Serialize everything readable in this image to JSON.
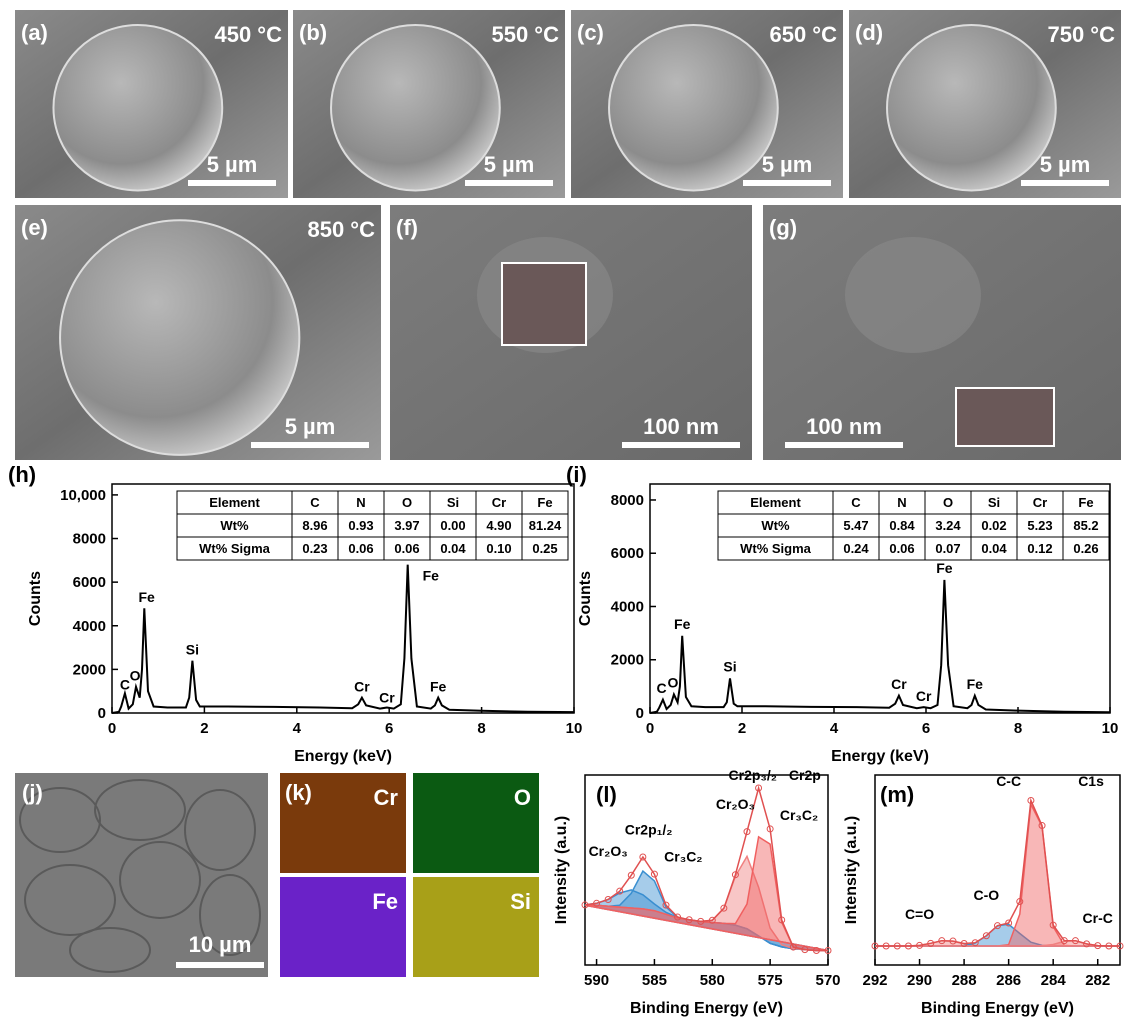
{
  "panels": [
    {
      "label": "(a)",
      "temperature": "450 °C",
      "scale": "5 µm"
    },
    {
      "label": "(b)",
      "temperature": "550 °C",
      "scale": "5 µm"
    },
    {
      "label": "(c)",
      "temperature": "650 °C",
      "scale": "5 µm"
    },
    {
      "label": "(d)",
      "temperature": "750 °C",
      "scale": "5 µm"
    },
    {
      "label": "(e)",
      "temperature": "850 °C",
      "scale": "5 µm"
    },
    {
      "label": "(f)",
      "scale": "100 nm"
    },
    {
      "label": "(g)",
      "scale": "100 nm"
    }
  ],
  "panel_j": {
    "label": "(j)",
    "scale": "10 µm"
  },
  "panel_k": {
    "label": "(k)",
    "maps": [
      "Cr",
      "O",
      "Fe",
      "Si"
    ]
  },
  "chart_data": [
    {
      "type": "line",
      "panel": "(h)",
      "xlabel": "Energy (keV)",
      "ylabel": "Counts",
      "xlim": [
        0,
        10
      ],
      "ylim": [
        0,
        10500
      ],
      "xticks": [
        0,
        2,
        4,
        6,
        8,
        10
      ],
      "yticks": [
        0,
        2000,
        4000,
        6000,
        8000,
        {
          "value": 10000,
          "label": "10,000"
        }
      ],
      "x": [
        0,
        0.15,
        0.2,
        0.28,
        0.36,
        0.45,
        0.52,
        0.6,
        0.65,
        0.7,
        0.78,
        0.9,
        1.2,
        1.6,
        1.67,
        1.74,
        1.82,
        1.9,
        2.5,
        3.5,
        4.5,
        5.2,
        5.33,
        5.41,
        5.5,
        5.8,
        5.95,
        6.1,
        6.25,
        6.33,
        6.4,
        6.48,
        6.6,
        6.9,
        6.99,
        7.06,
        7.14,
        7.3,
        8,
        9,
        10
      ],
      "series": [
        {
          "color": "#000000",
          "values": [
            0,
            50,
            300,
            900,
            200,
            400,
            1200,
            700,
            2000,
            4800,
            1000,
            300,
            250,
            250,
            700,
            2400,
            600,
            300,
            300,
            280,
            250,
            220,
            400,
            700,
            350,
            200,
            250,
            200,
            400,
            2500,
            6800,
            2500,
            300,
            200,
            350,
            700,
            350,
            150,
            100,
            60,
            40
          ]
        }
      ],
      "annotations": [
        {
          "text": "C",
          "x": 0.28,
          "y": 900,
          "color": "#000000"
        },
        {
          "text": "O",
          "x": 0.5,
          "y": 1300,
          "color": "#000000"
        },
        {
          "text": "Fe",
          "x": 0.75,
          "y": 4900,
          "color": "#000000"
        },
        {
          "text": "Si",
          "x": 1.74,
          "y": 2500,
          "color": "#000000"
        },
        {
          "text": "Cr",
          "x": 5.41,
          "y": 800,
          "color": "#000000"
        },
        {
          "text": "Cr",
          "x": 5.95,
          "y": 300,
          "color": "#000000"
        },
        {
          "text": "Fe",
          "x": 6.9,
          "y": 5900,
          "color": "#000000"
        },
        {
          "text": "Fe",
          "x": 7.06,
          "y": 800,
          "color": "#000000"
        }
      ],
      "table": {
        "header": [
          "Element",
          "C",
          "N",
          "O",
          "Si",
          "Cr",
          "Fe"
        ],
        "rows": [
          [
            "Wt%",
            "8.96",
            "0.93",
            "3.97",
            "0.00",
            "4.90",
            "81.24"
          ],
          [
            "Wt% Sigma",
            "0.23",
            "0.06",
            "0.06",
            "0.04",
            "0.10",
            "0.25"
          ]
        ]
      }
    },
    {
      "type": "line",
      "panel": "(i)",
      "xlabel": "Energy (keV)",
      "ylabel": "Counts",
      "xlim": [
        0,
        10
      ],
      "ylim": [
        0,
        8600
      ],
      "xticks": [
        0,
        2,
        4,
        6,
        8,
        10
      ],
      "yticks": [
        0,
        2000,
        4000,
        6000,
        8000
      ],
      "x": [
        0,
        0.15,
        0.2,
        0.28,
        0.36,
        0.45,
        0.52,
        0.6,
        0.65,
        0.7,
        0.78,
        0.9,
        1.2,
        1.6,
        1.67,
        1.74,
        1.82,
        1.9,
        2.5,
        3.5,
        4.5,
        5.2,
        5.33,
        5.41,
        5.5,
        5.8,
        5.95,
        6.1,
        6.25,
        6.33,
        6.4,
        6.48,
        6.6,
        6.9,
        6.99,
        7.06,
        7.14,
        7.3,
        8,
        9,
        10
      ],
      "series": [
        {
          "color": "#000000",
          "values": [
            0,
            50,
            200,
            500,
            150,
            300,
            700,
            400,
            1000,
            2900,
            600,
            250,
            220,
            220,
            400,
            1300,
            350,
            250,
            250,
            230,
            220,
            200,
            350,
            650,
            300,
            180,
            220,
            180,
            300,
            1800,
            5000,
            1800,
            250,
            180,
            300,
            650,
            300,
            130,
            90,
            50,
            30
          ]
        }
      ],
      "annotations": [
        {
          "text": "C",
          "x": 0.25,
          "y": 600,
          "color": "#000000"
        },
        {
          "text": "O",
          "x": 0.5,
          "y": 800,
          "color": "#000000"
        },
        {
          "text": "Fe",
          "x": 0.7,
          "y": 3000,
          "color": "#000000"
        },
        {
          "text": "Si",
          "x": 1.74,
          "y": 1400,
          "color": "#000000"
        },
        {
          "text": "Cr",
          "x": 5.41,
          "y": 750,
          "color": "#000000"
        },
        {
          "text": "Cr",
          "x": 5.95,
          "y": 300,
          "color": "#000000"
        },
        {
          "text": "Fe",
          "x": 6.4,
          "y": 5100,
          "color": "#000000"
        },
        {
          "text": "Fe",
          "x": 7.06,
          "y": 750,
          "color": "#000000"
        }
      ],
      "table": {
        "header": [
          "Element",
          "C",
          "N",
          "O",
          "Si",
          "Cr",
          "Fe"
        ],
        "rows": [
          [
            "Wt%",
            "5.47",
            "0.84",
            "3.24",
            "0.02",
            "5.23",
            "85.2"
          ],
          [
            "Wt% Sigma",
            "0.24",
            "0.06",
            "0.07",
            "0.04",
            "0.12",
            "0.26"
          ]
        ]
      }
    },
    {
      "type": "area",
      "panel": "(l)",
      "xlabel": "Binding Energy (eV)",
      "ylabel": "Intensity (a.u.)",
      "xlim": [
        591,
        570
      ],
      "ylim": [
        0,
        105
      ],
      "xticks": [
        590,
        585,
        580,
        575,
        570
      ],
      "x": [
        591,
        590,
        589,
        588,
        587,
        586,
        585,
        584,
        583,
        582,
        581,
        580,
        579,
        578,
        577,
        576,
        575,
        574,
        573,
        572,
        571,
        570
      ],
      "series": [
        {
          "color": "#8070c0",
          "fill": false,
          "marker": false,
          "values": [
            33,
            33,
            32.5,
            32,
            31.5,
            31,
            30,
            28,
            26,
            25,
            24,
            23.5,
            23,
            22,
            20,
            16,
            12,
            10,
            9,
            8.5,
            8,
            8
          ]
        },
        {
          "color": "#3a8fd0",
          "fill": true,
          "marker": false,
          "values": [
            33.2,
            34.1,
            36.2,
            39.8,
            41.5,
            38.8,
            33.7,
            29.1,
            26.2,
            25,
            24,
            23.5,
            23,
            22,
            20,
            16,
            12,
            10,
            9,
            8.5,
            8,
            8
          ]
        },
        {
          "color": "#3a8fd0",
          "fill": true,
          "marker": false,
          "values": [
            33,
            33,
            32.5,
            33,
            39.6,
            51.9,
            46.5,
            32,
            26.3,
            25,
            24,
            23.5,
            23,
            22,
            20,
            16,
            12,
            10,
            9,
            8.5,
            8,
            8
          ]
        },
        {
          "color": "#f08080",
          "fill": true,
          "marker": false,
          "values": [
            33,
            33,
            32.5,
            32,
            31.5,
            31,
            30,
            28,
            26,
            25,
            24.1,
            24.7,
            31.4,
            49,
            60,
            43,
            20.4,
            11.2,
            9.1,
            8.5,
            8,
            8
          ]
        },
        {
          "color": "#f06060",
          "fill": true,
          "marker": false,
          "values": [
            33,
            33,
            32.5,
            32,
            31.5,
            31,
            30,
            28,
            26,
            25,
            24,
            23.5,
            23,
            22.9,
            33.7,
            70.8,
            66.8,
            23.7,
            9.9,
            8.5,
            8,
            8
          ]
        },
        {
          "color": "#e05050",
          "fill": false,
          "marker": true,
          "values": [
            33.2,
            34.1,
            36.2,
            40.8,
            49.6,
            59.7,
            50.2,
            33.1,
            26.5,
            25,
            24.1,
            24.7,
            31.4,
            49.9,
            73.7,
            97.8,
            75.2,
            24.9,
            9.9,
            8.5,
            8,
            8
          ]
        }
      ],
      "annotations": [
        {
          "text": "Cr2p₁/₂",
          "x": 585.5,
          "y": 70,
          "color": "#000000"
        },
        {
          "text": "Cr₂O₃",
          "x": 589,
          "y": 58,
          "color": "#000000"
        },
        {
          "text": "Cr₃C₂",
          "x": 582.5,
          "y": 55,
          "color": "#000000"
        },
        {
          "text": "Cr₂O₃",
          "x": 578,
          "y": 84,
          "color": "#000000"
        },
        {
          "text": "Cr2p₃/₂",
          "x": 576.5,
          "y": 100,
          "color": "#000000"
        },
        {
          "text": "Cr2p",
          "x": 572,
          "y": 100,
          "color": "#000000"
        },
        {
          "text": "Cr₃C₂",
          "x": 572.5,
          "y": 78,
          "color": "#000000"
        }
      ]
    },
    {
      "type": "area",
      "panel": "(m)",
      "xlabel": "Binding Energy (eV)",
      "ylabel": "Intensity (a.u.)",
      "xlim": [
        292,
        281
      ],
      "ylim": [
        0,
        100
      ],
      "xticks": [
        292,
        290,
        288,
        286,
        284,
        282
      ],
      "x": [
        292,
        291.5,
        291,
        290.5,
        290,
        289.5,
        289,
        288.5,
        288,
        287.5,
        287,
        286.5,
        286,
        285.5,
        285,
        284.5,
        284,
        283.5,
        283,
        282.5,
        282,
        281.5,
        281
      ],
      "series": [
        {
          "color": "#8070c0",
          "fill": false,
          "marker": false,
          "values": [
            10,
            10,
            10,
            10,
            10,
            10,
            10,
            10,
            10,
            10,
            10,
            10,
            10,
            10,
            10,
            10,
            10,
            10,
            10,
            10,
            10,
            10,
            10
          ]
        },
        {
          "color": "#f08080",
          "fill": true,
          "marker": false,
          "values": [
            10,
            10,
            10,
            10,
            10.3,
            11.4,
            12.8,
            12.6,
            11.1,
            10.2,
            10,
            10,
            10,
            10,
            10,
            10,
            10,
            10,
            10,
            10,
            10,
            10,
            10
          ]
        },
        {
          "color": "#3a8fd0",
          "fill": true,
          "marker": false,
          "values": [
            10,
            10,
            10,
            10,
            10,
            10,
            10,
            10,
            10.2,
            11.5,
            15.4,
            20.7,
            21.4,
            16.6,
            12,
            10.3,
            10,
            10,
            10,
            10,
            10,
            10,
            10
          ]
        },
        {
          "color": "#f06060",
          "fill": true,
          "marker": false,
          "values": [
            10,
            10,
            10,
            10,
            10,
            10,
            10,
            10,
            10,
            10,
            10,
            10,
            10.7,
            26.8,
            84.6,
            73,
            20.2,
            10.3,
            10,
            10,
            10,
            10,
            10
          ]
        },
        {
          "color": "#f08080",
          "fill": true,
          "marker": false,
          "values": [
            10,
            10,
            10,
            10,
            10,
            10,
            10,
            10,
            10,
            10,
            10,
            10,
            10,
            10,
            10,
            10.1,
            10.8,
            12.5,
            12.8,
            11.1,
            10.2,
            10,
            10
          ]
        },
        {
          "color": "#e05050",
          "fill": false,
          "marker": true,
          "values": [
            10,
            10,
            10,
            10,
            10.3,
            11.4,
            12.8,
            12.6,
            11.3,
            11.7,
            15.4,
            20.7,
            22.1,
            33.4,
            86.6,
            73.4,
            21,
            12.8,
            12.8,
            11.1,
            10.2,
            10,
            10
          ]
        }
      ],
      "annotations": [
        {
          "text": "C1s",
          "x": 282.3,
          "y": 92,
          "color": "#000000"
        },
        {
          "text": "C-C",
          "x": 286,
          "y": 92,
          "color": "#000000"
        },
        {
          "text": "C-O",
          "x": 287,
          "y": 32,
          "color": "#000000"
        },
        {
          "text": "C=O",
          "x": 290,
          "y": 22,
          "color": "#000000"
        },
        {
          "text": "Cr-C",
          "x": 282,
          "y": 20,
          "color": "#000000"
        }
      ]
    }
  ]
}
